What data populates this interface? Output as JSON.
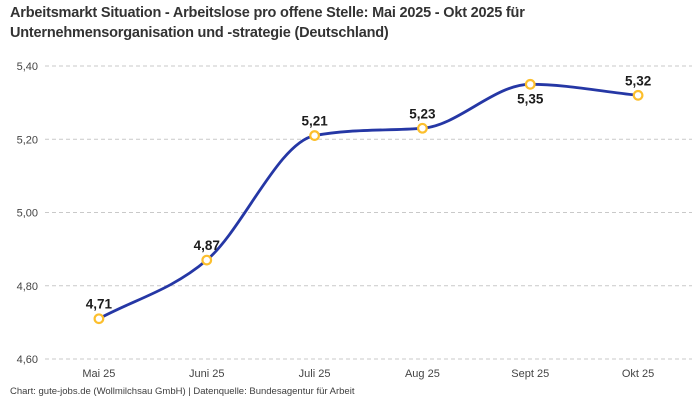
{
  "header": {
    "title_line1": "Arbeitsmarkt Situation - Arbeitslose pro offene Stelle: Mai 2025 - Okt 2025 für",
    "title_line2": "Unternehmensorganisation und -strategie (Deutschland)"
  },
  "footer": {
    "text": "Chart: gute-jobs.de (Wollmilchsau GmbH) | Datenquelle: Bundesagentur für Arbeit"
  },
  "chart_data": {
    "type": "line",
    "title": "Arbeitsmarkt Situation - Arbeitslose pro offene Stelle: Mai 2025 - Okt 2025 für Unternehmensorganisation und -strategie (Deutschland)",
    "xlabel": "",
    "ylabel": "",
    "categories": [
      "Mai 25",
      "Juni 25",
      "Juli 25",
      "Aug 25",
      "Sept 25",
      "Okt 25"
    ],
    "values": [
      4.71,
      4.87,
      5.21,
      5.23,
      5.35,
      5.32
    ],
    "point_labels": [
      "4,71",
      "4,87",
      "5,21",
      "5,23",
      "5,35",
      "5,32"
    ],
    "point_label_positions": [
      "above",
      "above",
      "above",
      "above",
      "below",
      "above"
    ],
    "ylim": [
      4.6,
      5.4
    ],
    "yticks": [
      4.6,
      4.8,
      5.0,
      5.2,
      5.4
    ],
    "ytick_labels": [
      "4,60",
      "4,80",
      "5,00",
      "5,20",
      "5,40"
    ],
    "grid": "horizontal-dashed",
    "legend": "none",
    "colors": {
      "line": "#2537a5",
      "marker_ring": "#fcbf2d",
      "marker_fill": "#ffffff",
      "gridline": "#c9c9c9",
      "axis_label": "#444444",
      "point_label": "#1c1c1c"
    }
  }
}
